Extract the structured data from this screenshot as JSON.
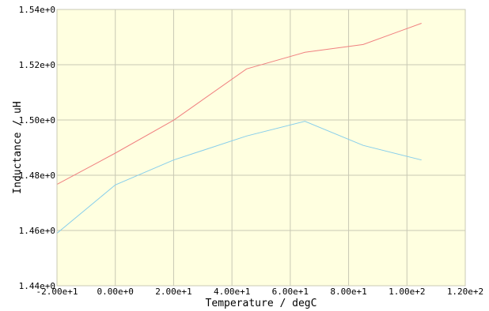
{
  "chart_data": {
    "type": "line",
    "xlabel": "Temperature / degC",
    "ylabel": "Inductance / uH",
    "xlim": [
      -20,
      120
    ],
    "ylim": [
      1.44,
      1.54
    ],
    "x_ticks": [
      -20,
      0,
      20,
      40,
      60,
      80,
      100,
      120
    ],
    "x_tick_labels": [
      "-2.00e+1",
      "0.00e+0",
      "2.00e+1",
      "4.00e+1",
      "6.00e+1",
      "8.00e+1",
      "1.00e+2",
      "1.20e+2"
    ],
    "y_ticks": [
      1.44,
      1.46,
      1.48,
      1.5,
      1.52,
      1.54
    ],
    "y_tick_labels": [
      "1.44e+0",
      "1.46e+0",
      "1.48e+0",
      "1.50e+0",
      "1.52e+0",
      "1.54e+0"
    ],
    "grid": true,
    "background_color": "#ffffe0",
    "grid_color": "#c8c8b4",
    "series": [
      {
        "color": "#f08080",
        "x": [
          -20,
          0,
          20,
          45,
          65,
          85,
          105
        ],
        "y": [
          1.4767,
          1.488,
          1.4999,
          1.5185,
          1.5245,
          1.5273,
          1.535
        ]
      },
      {
        "color": "#87ceeb",
        "x": [
          -20,
          0,
          20,
          45,
          65,
          85,
          105
        ],
        "y": [
          1.459,
          1.4765,
          1.4855,
          1.4942,
          1.4995,
          1.4908,
          1.4855
        ]
      }
    ]
  }
}
